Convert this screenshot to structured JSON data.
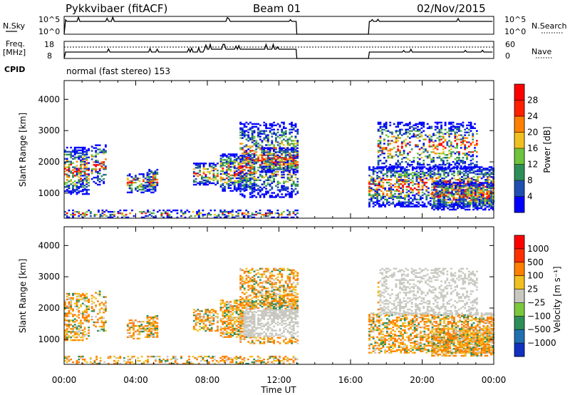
{
  "header": {
    "station": "Pykkvibaer (fitACF)",
    "beam": "Beam 01",
    "date": "02/Nov/2015"
  },
  "top_panels": {
    "nsky_label": "N.Sky",
    "nsky_ticks": [
      "10^5",
      "10^0"
    ],
    "nsearch_label": "N.Search",
    "nsearch_ticks": [
      "10^5",
      "10^0"
    ],
    "freq_label": "Freq.",
    "freq_unit": "[MHz]",
    "freq_ticks": [
      "18",
      "8"
    ],
    "nave_label": "Nave",
    "nave_ticks": [
      "60",
      "0"
    ],
    "cpid_label": "CPID",
    "cpid_text": "normal (fast stereo) 153"
  },
  "chart_data": [
    {
      "type": "heatmap",
      "title": "",
      "xlabel": "Time UT",
      "ylabel": "Slant Range [km]",
      "x_ticks": [
        "00:00",
        "04:00",
        "08:00",
        "12:00",
        "16:00",
        "20:00",
        "00:00"
      ],
      "x_range_hours": [
        0,
        24
      ],
      "y_ticks": [
        "1000",
        "2000",
        "3000",
        "4000"
      ],
      "y_range_km": [
        200,
        4600
      ],
      "colorbar": {
        "label": "Power [dB]",
        "ticks": [
          "4",
          "8",
          "12",
          "16",
          "20",
          "24",
          "28"
        ],
        "colors": [
          "#0000ff",
          "#1f4fb0",
          "#2e8e5a",
          "#6ec43c",
          "#f0c020",
          "#ff8000",
          "#ff2000",
          "#ff0000"
        ]
      },
      "data_gap_hours": [
        13.0,
        17.0
      ]
    },
    {
      "type": "heatmap",
      "title": "",
      "xlabel": "Time UT",
      "ylabel": "Slant Range [km]",
      "x_ticks": [
        "00:00",
        "04:00",
        "08:00",
        "12:00",
        "16:00",
        "20:00",
        "00:00"
      ],
      "x_range_hours": [
        0,
        24
      ],
      "y_ticks": [
        "1000",
        "2000",
        "3000",
        "4000"
      ],
      "y_range_km": [
        200,
        4600
      ],
      "colorbar": {
        "label": "Velocity [m s⁻¹]",
        "ticks": [
          "1000",
          "500",
          "100",
          "25",
          "−25",
          "−100",
          "−500",
          "−1000"
        ],
        "colors": [
          "#1030c0",
          "#2070b0",
          "#2e8e5a",
          "#7cc83c",
          "#c8c8c0",
          "#f0c020",
          "#ff8000",
          "#ff3000",
          "#ff0000"
        ]
      },
      "data_gap_hours": [
        13.0,
        17.0
      ]
    }
  ]
}
